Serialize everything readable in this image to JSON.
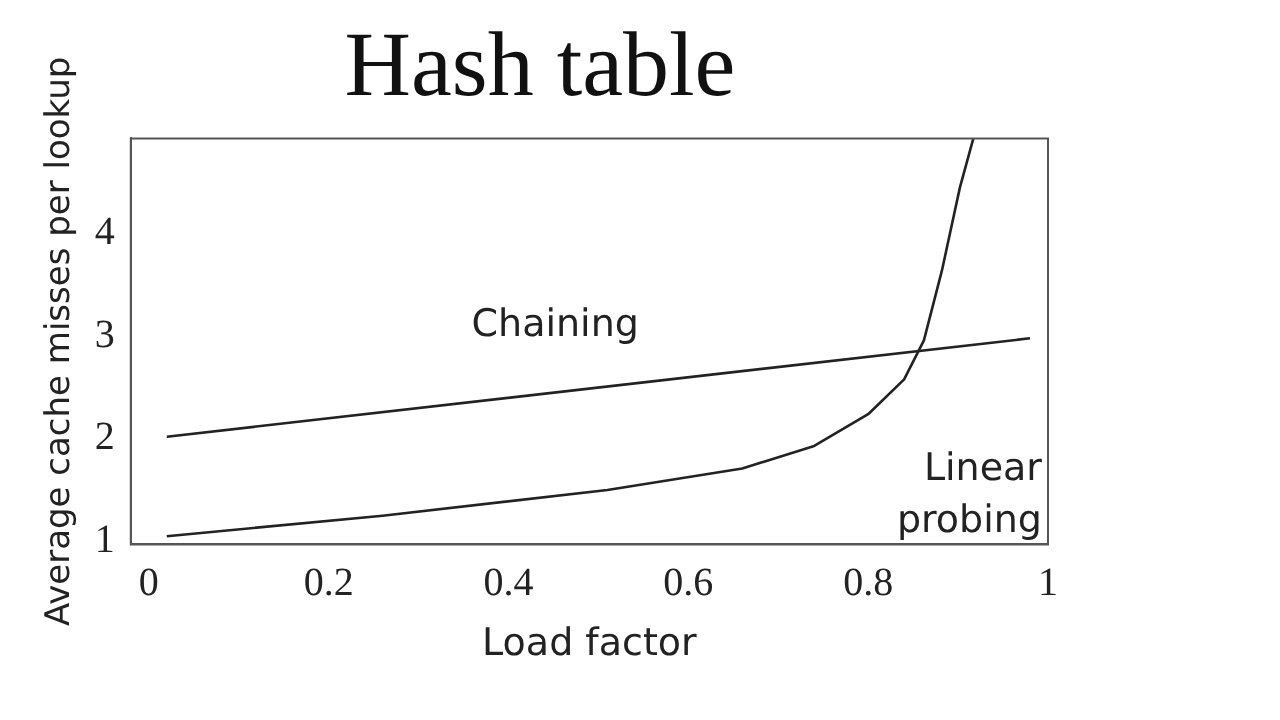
{
  "chart_data": {
    "type": "line",
    "title": "Hash table",
    "xlabel": "Load factor",
    "ylabel": "Average cache misses per lookup",
    "xlim": [
      -0.02,
      1.0
    ],
    "xticks": [
      0,
      0.2,
      0.4,
      0.6,
      0.8,
      1
    ],
    "ylim": [
      0.97,
      4.93
    ],
    "yticks": [
      1,
      2,
      3,
      4
    ],
    "grid": false,
    "legend": false,
    "marker": "none",
    "line_style": "solid",
    "series": [
      {
        "name": "Chaining",
        "color": "#222222",
        "x": [
          0.02,
          0.98
        ],
        "values": [
          2.02,
          2.98
        ]
      },
      {
        "name": "Linear probing",
        "color": "#222222",
        "x": [
          0.02,
          0.26,
          0.51,
          0.66,
          0.74,
          0.8,
          0.84,
          0.862,
          0.882,
          0.902,
          0.917
        ],
        "values": [
          1.05,
          1.25,
          1.5,
          1.71,
          1.93,
          2.24,
          2.58,
          2.96,
          3.64,
          4.45,
          4.93
        ]
      }
    ]
  }
}
